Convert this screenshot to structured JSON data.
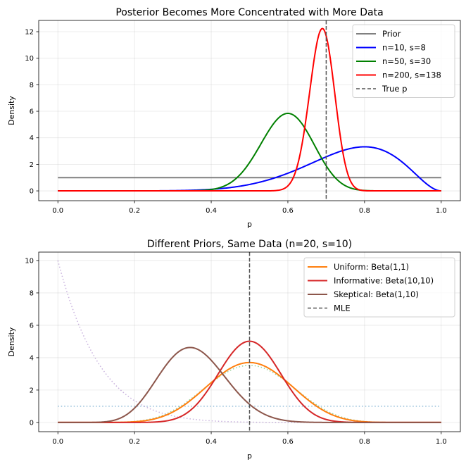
{
  "chart_data": [
    {
      "type": "line",
      "title": "Posterior Becomes More Concentrated with More Data",
      "xlabel": "p",
      "ylabel": "Density",
      "xlim": [
        -0.05,
        1.05
      ],
      "ylim": [
        -0.74,
        12.85
      ],
      "xticks": [
        "0.0",
        "0.2",
        "0.4",
        "0.6",
        "0.8",
        "1.0"
      ],
      "yticks": [
        "0",
        "2",
        "4",
        "6",
        "8",
        "10",
        "12"
      ],
      "grid": true,
      "legend_position": "top-right",
      "series": [
        {
          "name": "Prior",
          "dist": "beta",
          "alpha": 1,
          "beta": 1,
          "color": "#808080",
          "style": "solid"
        },
        {
          "name": "n=10, s=8",
          "dist": "beta",
          "alpha": 9,
          "beta": 3,
          "color": "#0000ff",
          "style": "solid"
        },
        {
          "name": "n=50, s=30",
          "dist": "beta",
          "alpha": 31,
          "beta": 21,
          "color": "#008000",
          "style": "solid"
        },
        {
          "name": "n=200, s=138",
          "dist": "beta",
          "alpha": 139,
          "beta": 63,
          "color": "#ff0000",
          "style": "solid"
        }
      ],
      "vlines": [
        {
          "name": "True p",
          "x": 0.7,
          "color": "#555555",
          "style": "dashed"
        }
      ]
    },
    {
      "type": "line",
      "title": "Different Priors, Same Data (n=20, s=10)",
      "xlabel": "p",
      "ylabel": "Density",
      "xlim": [
        -0.05,
        1.05
      ],
      "ylim": [
        -0.57,
        10.52
      ],
      "xticks": [
        "0.0",
        "0.2",
        "0.4",
        "0.6",
        "0.8",
        "1.0"
      ],
      "yticks": [
        "0",
        "2",
        "4",
        "6",
        "8",
        "10"
      ],
      "grid": true,
      "legend_position": "top-right",
      "series": [
        {
          "name": "Uniform: Beta(1,1)",
          "dist": "beta",
          "alpha": 11,
          "beta": 11,
          "color": "#ff7f0e",
          "style": "solid"
        },
        {
          "name": "Informative: Beta(10,10)",
          "dist": "beta",
          "alpha": 20,
          "beta": 20,
          "color": "#d62728",
          "style": "solid"
        },
        {
          "name": "Skeptical: Beta(1,10)",
          "dist": "beta",
          "alpha": 11,
          "beta": 20,
          "color": "#8c564b",
          "style": "solid"
        }
      ],
      "prior_series": [
        {
          "dist": "beta",
          "alpha": 1,
          "beta": 1,
          "color": "#1f77b4",
          "style": "dotted"
        },
        {
          "dist": "beta",
          "alpha": 10,
          "beta": 10,
          "color": "#2ca02c",
          "style": "dotted"
        },
        {
          "dist": "beta",
          "alpha": 1,
          "beta": 10,
          "color": "#9467bd",
          "style": "dotted"
        }
      ],
      "vlines": [
        {
          "name": "MLE",
          "x": 0.5,
          "color": "#555555",
          "style": "dashed"
        }
      ]
    }
  ]
}
